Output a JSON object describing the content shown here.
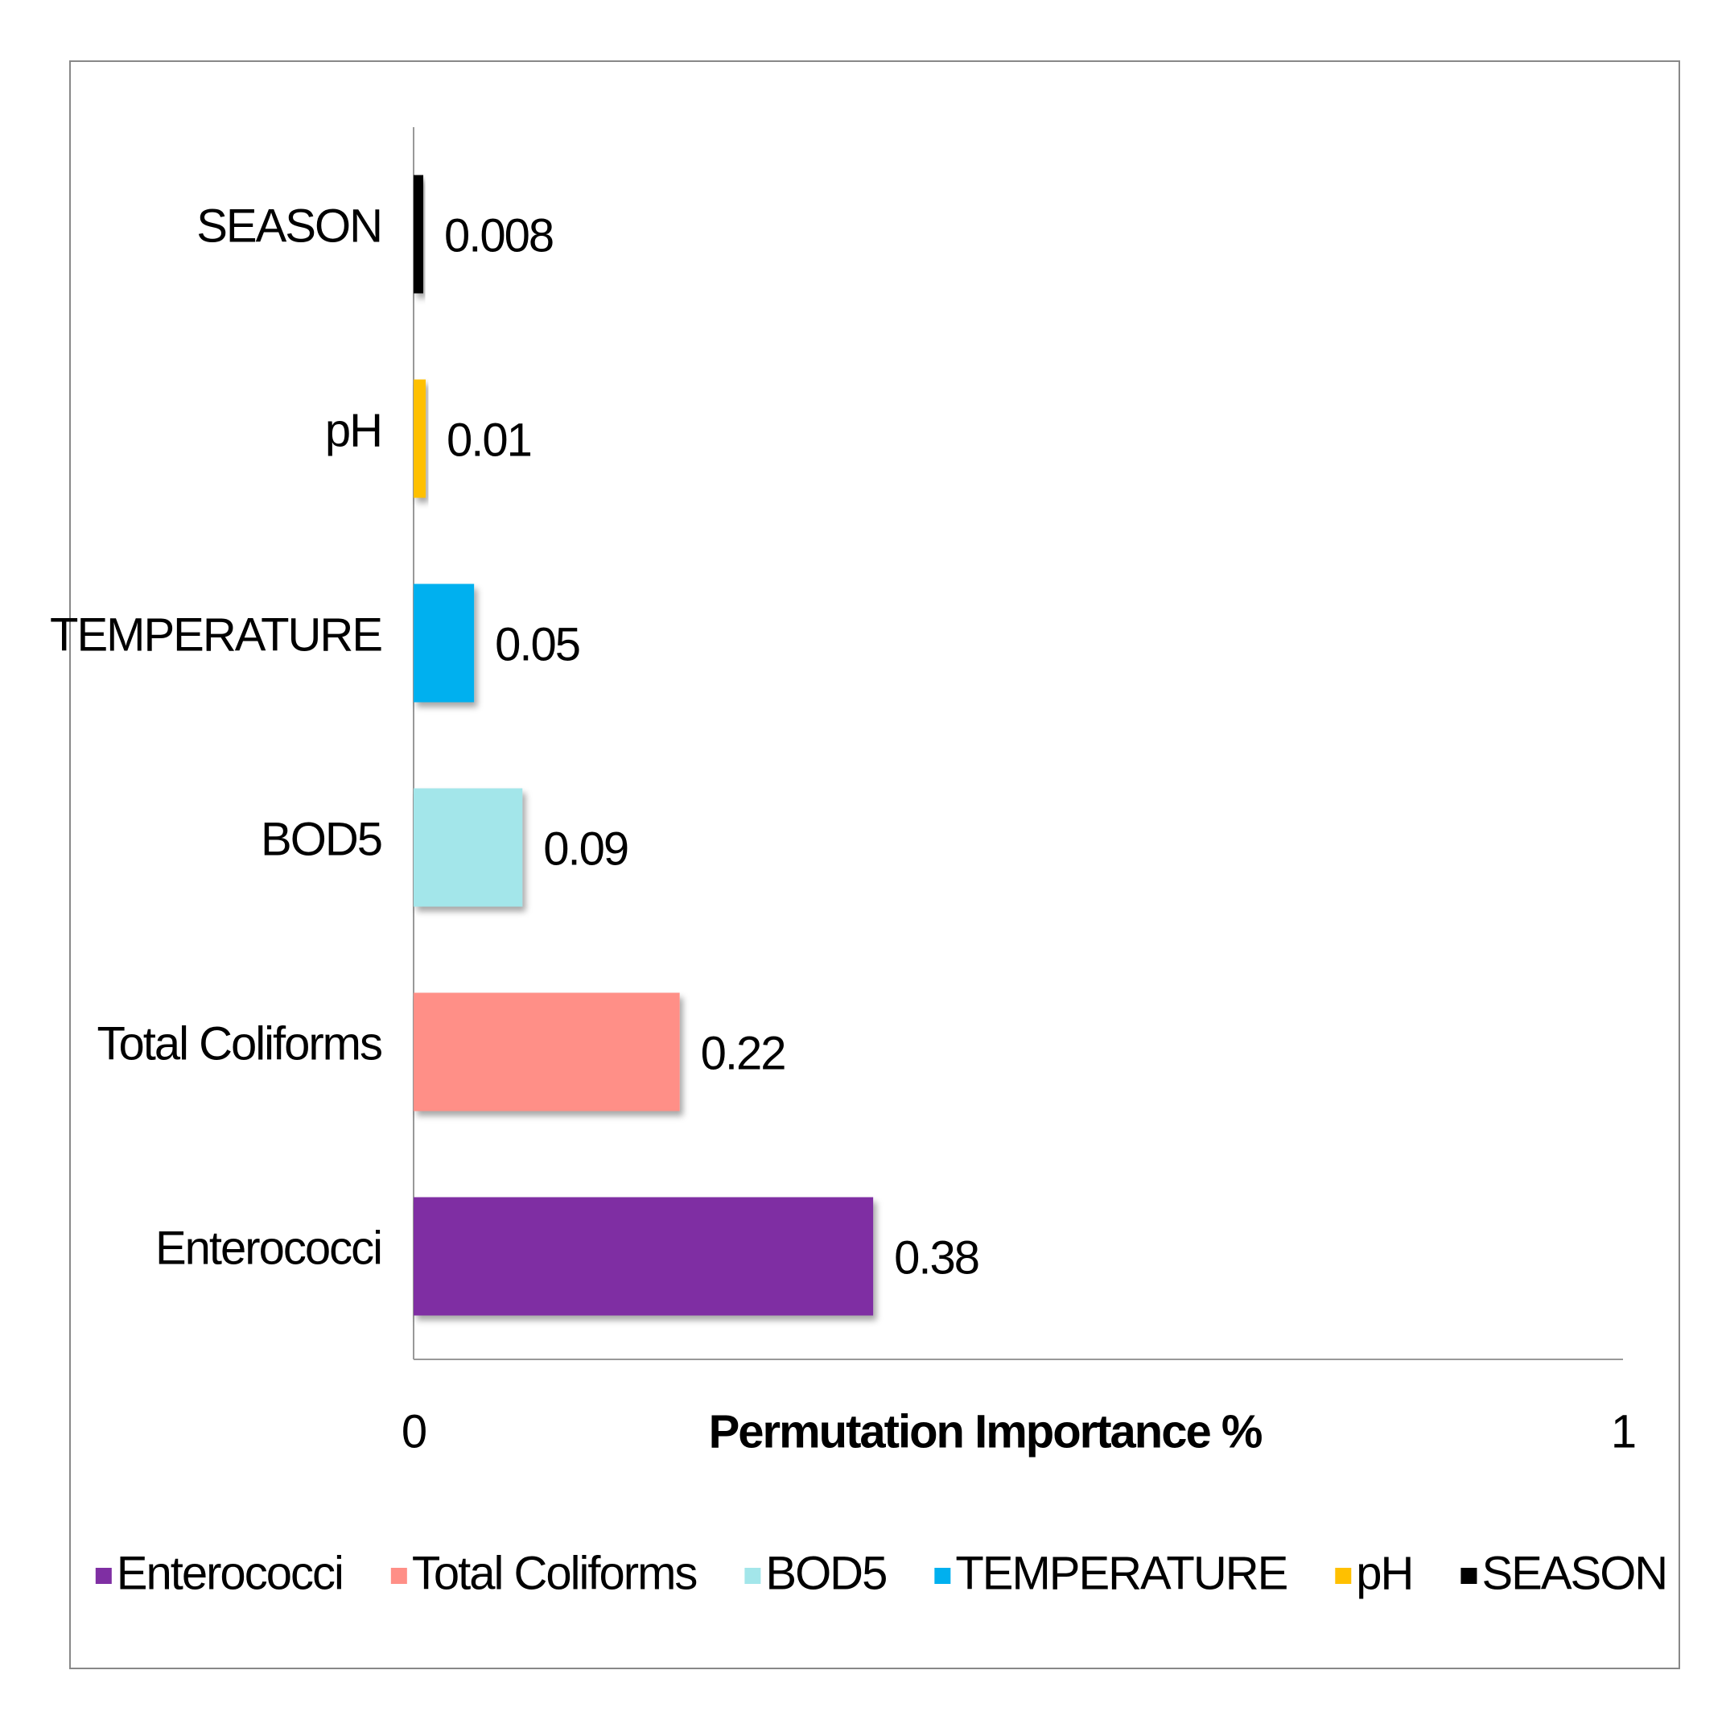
{
  "chart_data": {
    "type": "bar",
    "orientation": "horizontal",
    "x_label": "Permutation Importance %",
    "categories": [
      "Enterococci",
      "Total Coliforms",
      "BOD5",
      "TEMPERATURE",
      "pH",
      "SEASON"
    ],
    "values": [
      0.38,
      0.22,
      0.09,
      0.05,
      0.01,
      0.008
    ],
    "colors": [
      "#7f2fa3",
      "#ff8f87",
      "#a3e6ea",
      "#00b0ef",
      "#ffc000",
      "#000000"
    ],
    "xlim": [
      0,
      1
    ],
    "xticks": [
      0,
      1
    ],
    "legend": "bottom"
  }
}
